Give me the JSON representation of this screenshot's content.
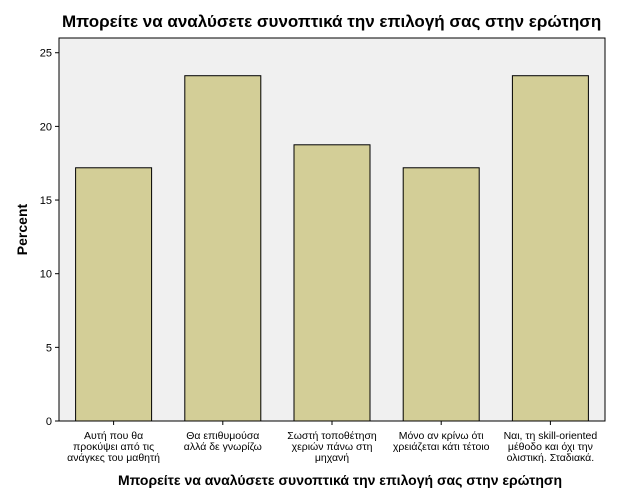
{
  "chart_data": {
    "type": "bar",
    "title": "Μπορείτε να αναλύσετε συνοπτικά την επιλογή σας στην ερώτηση",
    "xlabel": "Μπορείτε να αναλύσετε συνοπτικά την επιλογή σας στην ερώτηση",
    "ylabel": "Percent",
    "ylim": [
      0,
      26
    ],
    "yticks": [
      0,
      5,
      10,
      15,
      20,
      25
    ],
    "categories": [
      [
        "Αυτή που θα",
        "προκύψει από τις",
        "ανάγκες του μαθητή"
      ],
      [
        "Θα επιθυμούσα",
        "αλλά δε γνωρίζω"
      ],
      [
        "Σωστή τοποθέτηση",
        "χεριών πάνω στη",
        "μηχανή"
      ],
      [
        "Μόνο αν κρίνω ότι",
        "χρειάζεται κάτι τέτοιο"
      ],
      [
        "Ναι, τη skill-oriented",
        "μέθοδο και όχι την",
        "ολιστική. Σταδιακά."
      ]
    ],
    "values": [
      17.19,
      23.44,
      18.75,
      17.19,
      23.44
    ],
    "grid": false,
    "colors": {
      "bar_fill": "#d3ce97",
      "bar_stroke": "#000000",
      "plot_bg": "#f0f0f0"
    }
  }
}
